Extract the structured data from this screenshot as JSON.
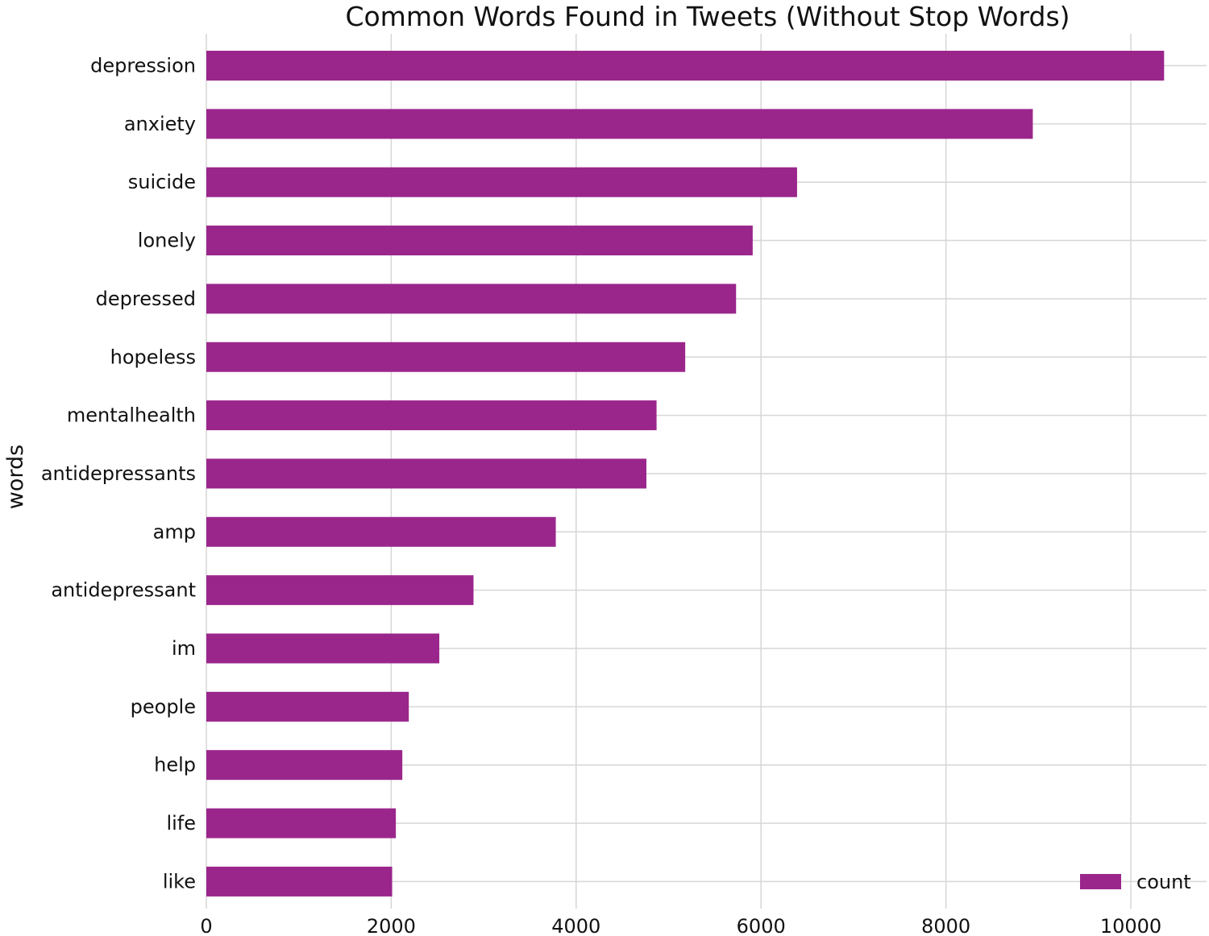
{
  "chart_data": {
    "type": "bar",
    "orientation": "horizontal",
    "title": "Common Words Found in Tweets (Without Stop Words)",
    "xlabel": "",
    "ylabel": "words",
    "categories": [
      "depression",
      "anxiety",
      "suicide",
      "lonely",
      "depressed",
      "hopeless",
      "mentalhealth",
      "antidepressants",
      "amp",
      "antidepressant",
      "im",
      "people",
      "help",
      "life",
      "like"
    ],
    "series": [
      {
        "name": "count",
        "values": [
          10360,
          8940,
          6390,
          5910,
          5730,
          5180,
          4870,
          4760,
          3780,
          2890,
          2520,
          2190,
          2120,
          2050,
          2010
        ],
        "color": "#9a268c"
      }
    ],
    "xlim": [
      0,
      10500
    ],
    "xticks": [
      0,
      2000,
      4000,
      6000,
      8000,
      10000
    ],
    "grid": true,
    "legend_position": "bottom-right"
  }
}
